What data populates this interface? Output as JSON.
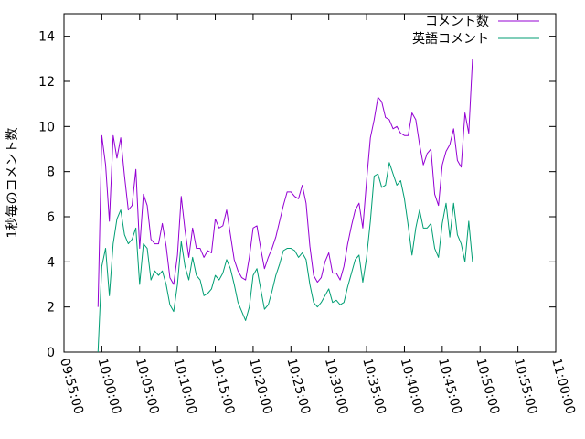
{
  "chart_data": {
    "type": "line",
    "xlabel": "",
    "ylabel": "1秒毎のコメント数",
    "xlim": [
      "09:55:00",
      "11:00:00"
    ],
    "ylim": [
      0,
      15
    ],
    "x_ticks": [
      "09:55:00",
      "10:00:00",
      "10:05:00",
      "10:10:00",
      "10:15:00",
      "10:20:00",
      "10:25:00",
      "10:30:00",
      "10:35:00",
      "10:40:00",
      "10:45:00",
      "10:50:00",
      "10:55:00",
      "11:00:00"
    ],
    "y_ticks": [
      0,
      2,
      4,
      6,
      8,
      10,
      12,
      14
    ],
    "grid": false,
    "legend_position": "top-right",
    "series": [
      {
        "name": "コメント数",
        "color": "#9400d3",
        "points": [
          [
            "09:59:30",
            2.0
          ],
          [
            "10:00:00",
            9.6
          ],
          [
            "10:00:30",
            8.3
          ],
          [
            "10:01:00",
            5.8
          ],
          [
            "10:01:30",
            9.6
          ],
          [
            "10:02:00",
            8.6
          ],
          [
            "10:02:30",
            9.5
          ],
          [
            "10:03:00",
            7.8
          ],
          [
            "10:03:30",
            6.3
          ],
          [
            "10:04:00",
            6.5
          ],
          [
            "10:04:30",
            8.1
          ],
          [
            "10:05:00",
            4.6
          ],
          [
            "10:05:30",
            7.0
          ],
          [
            "10:06:00",
            6.5
          ],
          [
            "10:06:30",
            5.0
          ],
          [
            "10:07:00",
            4.8
          ],
          [
            "10:07:30",
            4.8
          ],
          [
            "10:08:00",
            5.7
          ],
          [
            "10:08:30",
            4.7
          ],
          [
            "10:09:00",
            3.3
          ],
          [
            "10:09:30",
            3.0
          ],
          [
            "10:10:00",
            4.3
          ],
          [
            "10:10:30",
            6.9
          ],
          [
            "10:11:00",
            5.4
          ],
          [
            "10:11:30",
            4.2
          ],
          [
            "10:12:00",
            5.5
          ],
          [
            "10:12:30",
            4.6
          ],
          [
            "10:13:00",
            4.6
          ],
          [
            "10:13:30",
            4.2
          ],
          [
            "10:14:00",
            4.5
          ],
          [
            "10:14:30",
            4.4
          ],
          [
            "10:15:00",
            5.9
          ],
          [
            "10:15:30",
            5.5
          ],
          [
            "10:16:00",
            5.6
          ],
          [
            "10:16:30",
            6.3
          ],
          [
            "10:17:00",
            5.2
          ],
          [
            "10:17:30",
            4.1
          ],
          [
            "10:18:00",
            3.6
          ],
          [
            "10:18:30",
            3.3
          ],
          [
            "10:19:00",
            3.2
          ],
          [
            "10:19:30",
            4.2
          ],
          [
            "10:20:00",
            5.5
          ],
          [
            "10:20:30",
            5.6
          ],
          [
            "10:21:00",
            4.6
          ],
          [
            "10:21:30",
            3.7
          ],
          [
            "10:22:00",
            4.2
          ],
          [
            "10:22:30",
            4.6
          ],
          [
            "10:23:00",
            5.1
          ],
          [
            "10:23:30",
            5.8
          ],
          [
            "10:24:00",
            6.5
          ],
          [
            "10:24:30",
            7.1
          ],
          [
            "10:25:00",
            7.1
          ],
          [
            "10:25:30",
            6.9
          ],
          [
            "10:26:00",
            6.8
          ],
          [
            "10:26:30",
            7.4
          ],
          [
            "10:27:00",
            6.6
          ],
          [
            "10:27:30",
            4.7
          ],
          [
            "10:28:00",
            3.4
          ],
          [
            "10:28:30",
            3.1
          ],
          [
            "10:29:00",
            3.3
          ],
          [
            "10:29:30",
            4.0
          ],
          [
            "10:30:00",
            4.4
          ],
          [
            "10:30:30",
            3.5
          ],
          [
            "10:31:00",
            3.5
          ],
          [
            "10:31:30",
            3.2
          ],
          [
            "10:32:00",
            3.8
          ],
          [
            "10:32:30",
            4.8
          ],
          [
            "10:33:00",
            5.6
          ],
          [
            "10:33:30",
            6.3
          ],
          [
            "10:34:00",
            6.6
          ],
          [
            "10:34:30",
            5.5
          ],
          [
            "10:35:00",
            7.6
          ],
          [
            "10:35:30",
            9.5
          ],
          [
            "10:36:00",
            10.3
          ],
          [
            "10:36:30",
            11.3
          ],
          [
            "10:37:00",
            11.1
          ],
          [
            "10:37:30",
            10.4
          ],
          [
            "10:38:00",
            10.3
          ],
          [
            "10:38:30",
            9.9
          ],
          [
            "10:39:00",
            10.0
          ],
          [
            "10:39:30",
            9.7
          ],
          [
            "10:40:00",
            9.6
          ],
          [
            "10:40:30",
            9.6
          ],
          [
            "10:41:00",
            10.6
          ],
          [
            "10:41:30",
            10.3
          ],
          [
            "10:42:00",
            9.2
          ],
          [
            "10:42:30",
            8.3
          ],
          [
            "10:43:00",
            8.8
          ],
          [
            "10:43:30",
            9.0
          ],
          [
            "10:44:00",
            7.0
          ],
          [
            "10:44:30",
            6.5
          ],
          [
            "10:45:00",
            8.3
          ],
          [
            "10:45:30",
            8.9
          ],
          [
            "10:46:00",
            9.2
          ],
          [
            "10:46:30",
            9.9
          ],
          [
            "10:47:00",
            8.5
          ],
          [
            "10:47:30",
            8.2
          ],
          [
            "10:48:00",
            10.6
          ],
          [
            "10:48:30",
            9.7
          ],
          [
            "10:49:00",
            13.0
          ]
        ]
      },
      {
        "name": "英語コメント",
        "color": "#009e73",
        "points": [
          [
            "09:59:30",
            0.0
          ],
          [
            "10:00:00",
            3.8
          ],
          [
            "10:00:30",
            4.6
          ],
          [
            "10:01:00",
            2.5
          ],
          [
            "10:01:30",
            4.8
          ],
          [
            "10:02:00",
            5.9
          ],
          [
            "10:02:30",
            6.3
          ],
          [
            "10:03:00",
            5.2
          ],
          [
            "10:03:30",
            4.8
          ],
          [
            "10:04:00",
            5.0
          ],
          [
            "10:04:30",
            5.5
          ],
          [
            "10:05:00",
            3.0
          ],
          [
            "10:05:30",
            4.8
          ],
          [
            "10:06:00",
            4.6
          ],
          [
            "10:06:30",
            3.2
          ],
          [
            "10:07:00",
            3.6
          ],
          [
            "10:07:30",
            3.4
          ],
          [
            "10:08:00",
            3.6
          ],
          [
            "10:08:30",
            3.0
          ],
          [
            "10:09:00",
            2.1
          ],
          [
            "10:09:30",
            1.8
          ],
          [
            "10:10:00",
            3.0
          ],
          [
            "10:10:30",
            4.9
          ],
          [
            "10:11:00",
            3.8
          ],
          [
            "10:11:30",
            3.2
          ],
          [
            "10:12:00",
            4.2
          ],
          [
            "10:12:30",
            3.4
          ],
          [
            "10:13:00",
            3.2
          ],
          [
            "10:13:30",
            2.5
          ],
          [
            "10:14:00",
            2.6
          ],
          [
            "10:14:30",
            2.8
          ],
          [
            "10:15:00",
            3.4
          ],
          [
            "10:15:30",
            3.2
          ],
          [
            "10:16:00",
            3.5
          ],
          [
            "10:16:30",
            4.1
          ],
          [
            "10:17:00",
            3.7
          ],
          [
            "10:17:30",
            3.0
          ],
          [
            "10:18:00",
            2.2
          ],
          [
            "10:18:30",
            1.8
          ],
          [
            "10:19:00",
            1.4
          ],
          [
            "10:19:30",
            2.0
          ],
          [
            "10:20:00",
            3.4
          ],
          [
            "10:20:30",
            3.7
          ],
          [
            "10:21:00",
            2.8
          ],
          [
            "10:21:30",
            1.9
          ],
          [
            "10:22:00",
            2.1
          ],
          [
            "10:22:30",
            2.7
          ],
          [
            "10:23:00",
            3.4
          ],
          [
            "10:23:30",
            3.9
          ],
          [
            "10:24:00",
            4.5
          ],
          [
            "10:24:30",
            4.6
          ],
          [
            "10:25:00",
            4.6
          ],
          [
            "10:25:30",
            4.5
          ],
          [
            "10:26:00",
            4.2
          ],
          [
            "10:26:30",
            4.4
          ],
          [
            "10:27:00",
            4.1
          ],
          [
            "10:27:30",
            3.0
          ],
          [
            "10:28:00",
            2.2
          ],
          [
            "10:28:30",
            2.0
          ],
          [
            "10:29:00",
            2.2
          ],
          [
            "10:29:30",
            2.5
          ],
          [
            "10:30:00",
            2.8
          ],
          [
            "10:30:30",
            2.2
          ],
          [
            "10:31:00",
            2.3
          ],
          [
            "10:31:30",
            2.1
          ],
          [
            "10:32:00",
            2.2
          ],
          [
            "10:32:30",
            2.9
          ],
          [
            "10:33:00",
            3.5
          ],
          [
            "10:33:30",
            4.1
          ],
          [
            "10:34:00",
            4.3
          ],
          [
            "10:34:30",
            3.1
          ],
          [
            "10:35:00",
            4.2
          ],
          [
            "10:35:30",
            5.8
          ],
          [
            "10:36:00",
            7.8
          ],
          [
            "10:36:30",
            7.9
          ],
          [
            "10:37:00",
            7.3
          ],
          [
            "10:37:30",
            7.4
          ],
          [
            "10:38:00",
            8.4
          ],
          [
            "10:38:30",
            7.9
          ],
          [
            "10:39:00",
            7.4
          ],
          [
            "10:39:30",
            7.6
          ],
          [
            "10:40:00",
            6.8
          ],
          [
            "10:40:30",
            5.6
          ],
          [
            "10:41:00",
            4.3
          ],
          [
            "10:41:30",
            5.5
          ],
          [
            "10:42:00",
            6.3
          ],
          [
            "10:42:30",
            5.5
          ],
          [
            "10:43:00",
            5.5
          ],
          [
            "10:43:30",
            5.7
          ],
          [
            "10:44:00",
            4.6
          ],
          [
            "10:44:30",
            4.2
          ],
          [
            "10:45:00",
            5.7
          ],
          [
            "10:45:30",
            6.6
          ],
          [
            "10:46:00",
            5.1
          ],
          [
            "10:46:30",
            6.6
          ],
          [
            "10:47:00",
            5.2
          ],
          [
            "10:47:30",
            4.8
          ],
          [
            "10:48:00",
            4.0
          ],
          [
            "10:48:30",
            5.8
          ],
          [
            "10:49:00",
            4.0
          ]
        ]
      }
    ]
  }
}
